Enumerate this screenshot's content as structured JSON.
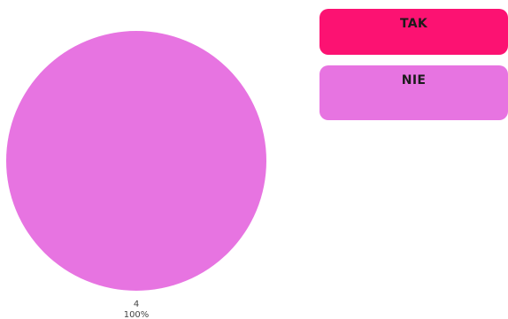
{
  "chart_data": {
    "type": "pie",
    "categories": [
      "TAK",
      "NIE"
    ],
    "values": [
      0,
      4
    ],
    "percent_labels": [
      "0%",
      "100%"
    ],
    "colors": [
      "#fc1272",
      "#e774e1"
    ],
    "legend_position": "right",
    "title": ""
  }
}
